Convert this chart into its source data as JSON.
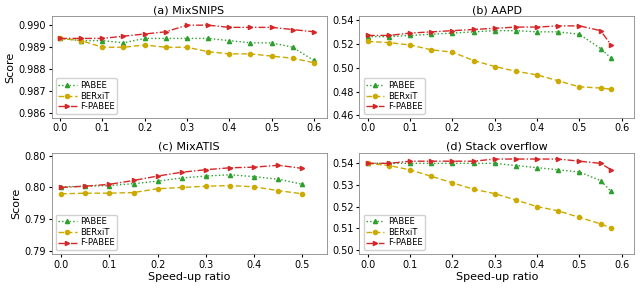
{
  "subplots": [
    {
      "title": "(a) MixSNIPS",
      "ylabel": "Score",
      "xlim": [
        -0.02,
        0.63
      ],
      "ylim": [
        0.9858,
        0.9904
      ],
      "yticks": [
        0.986,
        0.987,
        0.988,
        0.989,
        0.99
      ],
      "xticks": [
        0.0,
        0.1,
        0.2,
        0.3,
        0.4,
        0.5,
        0.6
      ],
      "pabee_x": [
        0.0,
        0.05,
        0.1,
        0.15,
        0.2,
        0.25,
        0.3,
        0.35,
        0.4,
        0.45,
        0.5,
        0.55,
        0.6
      ],
      "pabee_y": [
        0.9894,
        0.9893,
        0.9893,
        0.9892,
        0.9894,
        0.9894,
        0.9894,
        0.9894,
        0.9893,
        0.9892,
        0.9892,
        0.989,
        0.9884
      ],
      "berxit_x": [
        0.0,
        0.05,
        0.1,
        0.15,
        0.2,
        0.25,
        0.3,
        0.35,
        0.4,
        0.45,
        0.5,
        0.55,
        0.6
      ],
      "berxit_y": [
        0.9894,
        0.9893,
        0.989,
        0.989,
        0.9891,
        0.989,
        0.989,
        0.9888,
        0.9887,
        0.9887,
        0.9886,
        0.9885,
        0.9883
      ],
      "fpabee_x": [
        0.0,
        0.05,
        0.1,
        0.15,
        0.2,
        0.25,
        0.3,
        0.35,
        0.4,
        0.45,
        0.5,
        0.55,
        0.6
      ],
      "fpabee_y": [
        0.9894,
        0.9894,
        0.9894,
        0.9895,
        0.9896,
        0.9897,
        0.99,
        0.99,
        0.9899,
        0.9899,
        0.9899,
        0.9898,
        0.9897
      ],
      "legend_loc": "lower left"
    },
    {
      "title": "(b) AAPD",
      "ylabel": "",
      "xlim": [
        -0.02,
        0.63
      ],
      "ylim": [
        0.458,
        0.543
      ],
      "yticks": [
        0.46,
        0.48,
        0.5,
        0.52,
        0.54
      ],
      "xticks": [
        0.0,
        0.1,
        0.2,
        0.3,
        0.4,
        0.5,
        0.6
      ],
      "pabee_x": [
        0.0,
        0.05,
        0.1,
        0.15,
        0.2,
        0.25,
        0.3,
        0.35,
        0.4,
        0.45,
        0.5,
        0.55,
        0.575
      ],
      "pabee_y": [
        0.526,
        0.526,
        0.527,
        0.528,
        0.529,
        0.53,
        0.531,
        0.531,
        0.53,
        0.53,
        0.528,
        0.516,
        0.508
      ],
      "berxit_x": [
        0.0,
        0.05,
        0.1,
        0.15,
        0.2,
        0.25,
        0.3,
        0.35,
        0.4,
        0.45,
        0.5,
        0.55,
        0.575
      ],
      "berxit_y": [
        0.522,
        0.521,
        0.519,
        0.515,
        0.513,
        0.506,
        0.501,
        0.497,
        0.494,
        0.489,
        0.484,
        0.483,
        0.482
      ],
      "fpabee_x": [
        0.0,
        0.05,
        0.1,
        0.15,
        0.2,
        0.25,
        0.3,
        0.35,
        0.4,
        0.45,
        0.5,
        0.55,
        0.575
      ],
      "fpabee_y": [
        0.527,
        0.527,
        0.529,
        0.53,
        0.531,
        0.532,
        0.533,
        0.534,
        0.534,
        0.535,
        0.535,
        0.531,
        0.519
      ],
      "legend_loc": "lower left"
    },
    {
      "title": "(c) MixATIS",
      "ylabel": "Score",
      "xlim": [
        -0.02,
        0.55
      ],
      "ylim": [
        0.7845,
        0.8005
      ],
      "yticks": [
        0.785,
        0.79,
        0.795,
        0.8
      ],
      "xticks": [
        0.0,
        0.1,
        0.2,
        0.3,
        0.4,
        0.5
      ],
      "pabee_x": [
        0.0,
        0.05,
        0.1,
        0.15,
        0.2,
        0.25,
        0.3,
        0.35,
        0.4,
        0.45,
        0.5
      ],
      "pabee_y": [
        0.7951,
        0.7952,
        0.7953,
        0.7956,
        0.796,
        0.7965,
        0.7968,
        0.797,
        0.7967,
        0.7963,
        0.7955
      ],
      "berxit_x": [
        0.0,
        0.05,
        0.1,
        0.15,
        0.2,
        0.25,
        0.3,
        0.35,
        0.4,
        0.45,
        0.5
      ],
      "berxit_y": [
        0.794,
        0.7941,
        0.7941,
        0.7942,
        0.7948,
        0.795,
        0.7952,
        0.7953,
        0.7951,
        0.7945,
        0.794
      ],
      "fpabee_x": [
        0.0,
        0.05,
        0.1,
        0.15,
        0.2,
        0.25,
        0.3,
        0.35,
        0.4,
        0.45,
        0.5
      ],
      "fpabee_y": [
        0.795,
        0.7952,
        0.7955,
        0.7961,
        0.7968,
        0.7974,
        0.7978,
        0.7981,
        0.7982,
        0.7985,
        0.798
      ],
      "legend_loc": "lower left"
    },
    {
      "title": "(d) Stack overflow",
      "ylabel": "",
      "xlim": [
        -0.02,
        0.63
      ],
      "ylim": [
        0.498,
        0.545
      ],
      "yticks": [
        0.5,
        0.51,
        0.52,
        0.53,
        0.54
      ],
      "xticks": [
        0.0,
        0.1,
        0.2,
        0.3,
        0.4,
        0.5,
        0.6
      ],
      "pabee_x": [
        0.0,
        0.05,
        0.1,
        0.15,
        0.2,
        0.25,
        0.3,
        0.35,
        0.4,
        0.45,
        0.5,
        0.55,
        0.575
      ],
      "pabee_y": [
        0.54,
        0.54,
        0.54,
        0.54,
        0.54,
        0.54,
        0.54,
        0.539,
        0.538,
        0.537,
        0.536,
        0.532,
        0.527
      ],
      "berxit_x": [
        0.0,
        0.05,
        0.1,
        0.15,
        0.2,
        0.25,
        0.3,
        0.35,
        0.4,
        0.45,
        0.5,
        0.55,
        0.575
      ],
      "berxit_y": [
        0.54,
        0.539,
        0.537,
        0.534,
        0.531,
        0.528,
        0.526,
        0.523,
        0.52,
        0.518,
        0.515,
        0.512,
        0.51
      ],
      "fpabee_x": [
        0.0,
        0.05,
        0.1,
        0.15,
        0.2,
        0.25,
        0.3,
        0.35,
        0.4,
        0.45,
        0.5,
        0.55,
        0.575
      ],
      "fpabee_y": [
        0.54,
        0.54,
        0.541,
        0.541,
        0.541,
        0.541,
        0.542,
        0.542,
        0.542,
        0.542,
        0.541,
        0.54,
        0.537
      ],
      "legend_loc": "lower left"
    }
  ],
  "pabee_color": "#2ca02c",
  "berxit_color": "#ccaa00",
  "fpabee_color": "#d62728",
  "xlabel": "Speed-up ratio",
  "legend_labels": [
    "PABEE",
    "BERxiT",
    "F-PABEE"
  ]
}
